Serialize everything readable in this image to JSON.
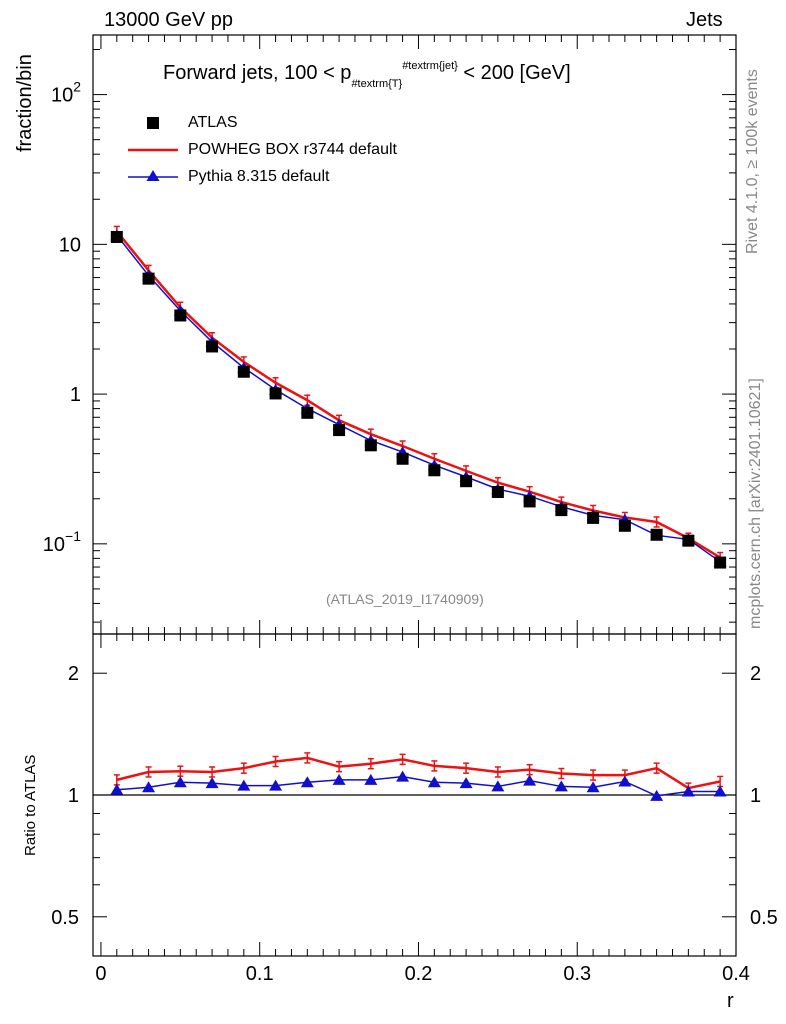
{
  "header": {
    "left": "13000 GeV pp",
    "right": "Jets"
  },
  "side_text": {
    "rivet": "Rivet 4.1.0, ≥ 100k events",
    "mcplots": "mcplots.cern.ch [arXiv:2401.10621]"
  },
  "title": {
    "pre": "Forward jets, 100 < p",
    "sub": "#textrm{T}",
    "sup": "#textrm{jet}",
    "post": " < 200 [GeV]"
  },
  "watermark": "(ATLAS_2019_I1740909)",
  "legend": {
    "atlas": "ATLAS",
    "powheg": "POWHEG BOX r3744 default",
    "pythia": "Pythia 8.315 default"
  },
  "colors": {
    "atlas": "#000000",
    "powheg": "#ee1111",
    "pythia": "#1010cc"
  },
  "chart_data": [
    {
      "type": "scatter",
      "panel": "main",
      "ylabel": "fraction/bin",
      "yscale": "log",
      "ylim": [
        0.025,
        250
      ],
      "ytick_labels": [
        "10^-1",
        "1",
        "10",
        "10^2"
      ],
      "xlim": [
        -0.005,
        0.4
      ],
      "x": [
        0.01,
        0.03,
        0.05,
        0.07,
        0.09,
        0.11,
        0.13,
        0.15,
        0.17,
        0.19,
        0.21,
        0.23,
        0.25,
        0.27,
        0.29,
        0.31,
        0.33,
        0.35,
        0.37,
        0.39
      ],
      "series": [
        {
          "name": "ATLAS",
          "style": "marker-square",
          "values": [
            11.2,
            5.9,
            3.35,
            2.08,
            1.41,
            1.01,
            0.75,
            0.575,
            0.455,
            0.37,
            0.31,
            0.262,
            0.222,
            0.192,
            0.168,
            0.149,
            0.132,
            0.115,
            0.105,
            0.075
          ]
        },
        {
          "name": "POWHEG BOX r3744 default",
          "style": "line",
          "values": [
            12.2,
            6.7,
            3.8,
            2.38,
            1.64,
            1.19,
            0.91,
            0.668,
            0.54,
            0.45,
            0.37,
            0.307,
            0.256,
            0.223,
            0.19,
            0.167,
            0.15,
            0.14,
            0.109,
            0.081
          ]
        },
        {
          "name": "Pythia 8.315 default",
          "style": "line-triangle",
          "values": [
            11.5,
            6.2,
            3.6,
            2.23,
            1.5,
            1.07,
            0.8,
            0.625,
            0.49,
            0.41,
            0.335,
            0.28,
            0.232,
            0.208,
            0.177,
            0.155,
            0.145,
            0.114,
            0.107,
            0.076
          ]
        }
      ]
    },
    {
      "type": "line",
      "panel": "ratio",
      "ylabel": "Ratio to ATLAS",
      "xlabel": "r",
      "yscale": "log",
      "ylim": [
        0.4,
        2.5
      ],
      "ytick_labels": [
        "0.5",
        "1",
        "2"
      ],
      "xlim": [
        -0.005,
        0.4
      ],
      "x_ticks": [
        "0",
        "0.1",
        "0.2",
        "0.3",
        "0.4"
      ],
      "x": [
        0.01,
        0.03,
        0.05,
        0.07,
        0.09,
        0.11,
        0.13,
        0.15,
        0.17,
        0.19,
        0.21,
        0.23,
        0.25,
        0.27,
        0.29,
        0.31,
        0.33,
        0.35,
        0.37,
        0.39
      ],
      "series": [
        {
          "name": "POWHEG BOX r3744 default",
          "values": [
            1.09,
            1.14,
            1.145,
            1.14,
            1.165,
            1.21,
            1.235,
            1.175,
            1.195,
            1.225,
            1.18,
            1.165,
            1.14,
            1.155,
            1.13,
            1.12,
            1.12,
            1.165,
            1.04,
            1.08
          ]
        },
        {
          "name": "Pythia 8.315 default",
          "values": [
            1.03,
            1.045,
            1.075,
            1.07,
            1.055,
            1.055,
            1.075,
            1.09,
            1.09,
            1.11,
            1.075,
            1.07,
            1.05,
            1.085,
            1.05,
            1.045,
            1.08,
            0.995,
            1.02,
            1.02
          ]
        }
      ]
    }
  ]
}
